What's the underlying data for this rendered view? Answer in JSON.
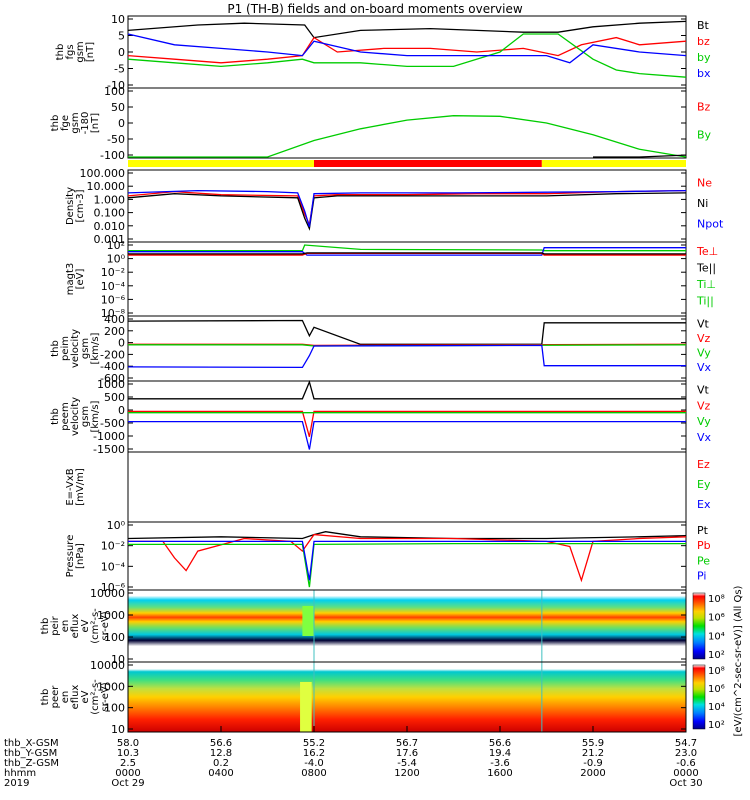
{
  "title": "P1 (TH-B) fields and on-board moments overview",
  "colors": {
    "black": "#000000",
    "red": "#ff0000",
    "green": "#00cc00",
    "blue": "#0000ff",
    "yellow": "#ffff00"
  },
  "chart_data": [
    {
      "type": "line",
      "ylabel": [
        "thb",
        "fgs",
        "gsm",
        "[nT]"
      ],
      "yticks": [
        "10",
        "5",
        "0",
        "-5",
        "-10"
      ],
      "ylim": [
        -10,
        10
      ],
      "legend": [
        {
          "name": "Bt",
          "color": "#000000"
        },
        {
          "name": "bz",
          "color": "#ff0000"
        },
        {
          "name": "by",
          "color": "#00cc00"
        },
        {
          "name": "bx",
          "color": "#0000ff"
        }
      ],
      "series": [
        {
          "name": "Bt",
          "color": "#000000",
          "x": [
            0,
            3,
            5,
            7.6,
            8,
            10,
            13,
            15,
            17,
            18.5,
            20,
            22,
            24
          ],
          "y": [
            6,
            7.5,
            8,
            7.5,
            4,
            6,
            6.5,
            6,
            5.5,
            5.5,
            7,
            8,
            8.5
          ]
        },
        {
          "name": "bz",
          "color": "#ff0000",
          "x": [
            0,
            2,
            4,
            6,
            7.5,
            8,
            9,
            11,
            13,
            15,
            17,
            18.5,
            19.5,
            21,
            22,
            24
          ],
          "y": [
            -1,
            -2,
            -3,
            -2,
            -1,
            4,
            0,
            1,
            1,
            0,
            1,
            -1,
            2,
            4,
            2,
            3
          ]
        },
        {
          "name": "by",
          "color": "#00cc00",
          "x": [
            0,
            2,
            4,
            6,
            7.5,
            8,
            10,
            12,
            14,
            16,
            17,
            18.5,
            20,
            21,
            22,
            24
          ],
          "y": [
            -2,
            -3,
            -4,
            -3,
            -2,
            -3,
            -3,
            -4,
            -4,
            0,
            5,
            5,
            -2,
            -5,
            -6,
            -7
          ]
        },
        {
          "name": "bx",
          "color": "#0000ff",
          "x": [
            0,
            2,
            4,
            6,
            7.5,
            8,
            10,
            12,
            14,
            16,
            18,
            19,
            20,
            22,
            24
          ],
          "y": [
            5,
            2,
            1,
            0,
            -1,
            3,
            0,
            -1,
            -1,
            -1,
            -1,
            -3,
            2,
            0,
            -1
          ]
        }
      ]
    },
    {
      "type": "line",
      "ylabel": [
        "thb",
        "fge",
        "gsm",
        "-180",
        "[nT]"
      ],
      "yticks": [
        "100",
        "50",
        "0",
        "-50",
        "-100"
      ],
      "ylim": [
        -140,
        100
      ],
      "legend": [
        {
          "name": "Bz",
          "color": "#ff0000"
        },
        {
          "name": "By",
          "color": "#00cc00"
        }
      ],
      "series": [
        {
          "name": "By",
          "color": "#00cc00",
          "x": [
            0,
            4,
            6,
            8,
            10,
            12,
            14,
            16,
            18,
            20,
            22,
            24
          ],
          "y": [
            -160,
            -160,
            -138,
            -80,
            -40,
            -10,
            5,
            3,
            -20,
            -60,
            -110,
            -140
          ]
        },
        {
          "name": "Bt",
          "color": "#000000",
          "x": [
            20,
            22,
            24
          ],
          "y": [
            -160,
            -140,
            -130
          ]
        }
      ]
    },
    {
      "type": "line",
      "ylabel": [
        "Density",
        "[cm-3]"
      ],
      "yticks": [
        "100.000",
        "10.000",
        "1.000",
        "0.100",
        "0.010",
        "0.001"
      ],
      "ylim": [
        0.0001,
        1000
      ],
      "log": true,
      "legend": [
        {
          "name": "Ne",
          "color": "#ff0000"
        },
        {
          "name": "Ni",
          "color": "#000000"
        },
        {
          "name": "Npot",
          "color": "#0000ff"
        }
      ],
      "series": [
        {
          "name": "Ne",
          "color": "#ff0000",
          "x": [
            0,
            2,
            4,
            7.3,
            7.6,
            7.8,
            8,
            9,
            12,
            15,
            18,
            21,
            24
          ],
          "y": [
            3,
            8,
            4,
            3,
            0.05,
            0.005,
            3,
            4,
            4,
            5,
            5,
            8,
            10
          ]
        },
        {
          "name": "Ni",
          "color": "#000000",
          "x": [
            0,
            2,
            4,
            7.3,
            7.6,
            7.8,
            8,
            9,
            12,
            15,
            18,
            21,
            24
          ],
          "y": [
            2,
            5,
            3,
            2,
            0.02,
            0.002,
            2,
            3,
            3,
            3,
            3,
            5,
            6
          ]
        },
        {
          "name": "Npot",
          "color": "#0000ff",
          "x": [
            0,
            3,
            6,
            7.3,
            7.6,
            7.8,
            8,
            10,
            14,
            18,
            21,
            24
          ],
          "y": [
            6,
            10,
            8,
            6,
            0.1,
            0.003,
            5,
            6,
            6,
            7,
            8,
            10
          ]
        }
      ]
    },
    {
      "type": "line",
      "ylabel": [
        "magt3",
        "[eV]"
      ],
      "yticks": [
        "10²",
        "10⁰",
        "10⁻²",
        "10⁻⁴",
        "10⁻⁶",
        "10⁻⁸"
      ],
      "ylim": [
        1e-10,
        1000
      ],
      "log": true,
      "legend": [
        {
          "name": "Te⊥",
          "color": "#ff0000"
        },
        {
          "name": "Te||",
          "color": "#000000"
        },
        {
          "name": "Ti⊥",
          "color": "#00cc00"
        },
        {
          "name": "Ti||",
          "color": "#00cc00"
        }
      ],
      "series": [
        {
          "name": "Ti",
          "color": "#00cc00",
          "x": [
            0,
            7.5,
            7.6,
            10,
            17.8,
            17.9,
            24
          ],
          "y": [
            30,
            30,
            300,
            50,
            40,
            30,
            30
          ]
        },
        {
          "name": "Tipara",
          "color": "#0000ff",
          "x": [
            0,
            7.5,
            7.7,
            17.8,
            17.9,
            24
          ],
          "y": [
            20,
            20,
            5,
            5,
            100,
            100
          ]
        },
        {
          "name": "Te",
          "color": "#ff0000",
          "x": [
            0,
            7.5,
            7.7,
            17.8,
            17.9,
            24
          ],
          "y": [
            5,
            5,
            10,
            10,
            5,
            5
          ]
        },
        {
          "name": "Tepara",
          "color": "#000000",
          "x": [
            0,
            7.5,
            7.7,
            17.8,
            17.9,
            24
          ],
          "y": [
            8,
            8,
            12,
            12,
            8,
            8
          ]
        }
      ]
    },
    {
      "type": "line",
      "ylabel": [
        "thb",
        "peim",
        "velocity",
        "gsm",
        "[km/s]"
      ],
      "yticks": [
        "400",
        "200",
        "0",
        "-200",
        "-400",
        "-600"
      ],
      "ylim": [
        -650,
        500
      ],
      "legend": [
        {
          "name": "Vt",
          "color": "#000000"
        },
        {
          "name": "Vz",
          "color": "#ff0000"
        },
        {
          "name": "Vy",
          "color": "#00cc00"
        },
        {
          "name": "Vx",
          "color": "#0000ff"
        }
      ],
      "series": [
        {
          "name": "Vt",
          "color": "#000000",
          "x": [
            0,
            7.5,
            7.8,
            8,
            10,
            17.8,
            17.9,
            24
          ],
          "y": [
            410,
            420,
            150,
            300,
            0,
            0,
            380,
            380
          ]
        },
        {
          "name": "Vz",
          "color": "#ff0000",
          "x": [
            0,
            7.5,
            8,
            24
          ],
          "y": [
            0,
            0,
            -20,
            0
          ]
        },
        {
          "name": "Vy",
          "color": "#00cc00",
          "x": [
            0,
            7.5,
            8,
            24
          ],
          "y": [
            -10,
            -10,
            -30,
            -10
          ]
        },
        {
          "name": "Vx",
          "color": "#0000ff",
          "x": [
            0,
            7.5,
            7.8,
            8,
            17.8,
            17.9,
            24
          ],
          "y": [
            -400,
            -410,
            -200,
            -30,
            -20,
            -380,
            -380
          ]
        }
      ]
    },
    {
      "type": "line",
      "ylabel": [
        "thb",
        "peem",
        "velocity",
        "gsm",
        "[km/s]"
      ],
      "yticks": [
        "1000",
        "500",
        "0",
        "-500",
        "-1000",
        "-1500"
      ],
      "ylim": [
        -1600,
        1200
      ],
      "legend": [
        {
          "name": "Vt",
          "color": "#000000"
        },
        {
          "name": "Vz",
          "color": "#ff0000"
        },
        {
          "name": "Vy",
          "color": "#00cc00"
        },
        {
          "name": "Vx",
          "color": "#0000ff"
        }
      ],
      "series": [
        {
          "name": "Vt",
          "color": "#000000",
          "x": [
            0,
            7.5,
            7.8,
            8,
            24
          ],
          "y": [
            500,
            500,
            1200,
            500,
            500
          ]
        },
        {
          "name": "Vz",
          "color": "#ff0000",
          "x": [
            0,
            7.5,
            7.8,
            8,
            24
          ],
          "y": [
            0,
            0,
            -1000,
            0,
            0
          ]
        },
        {
          "name": "Vy",
          "color": "#00cc00",
          "x": [
            0,
            24
          ],
          "y": [
            -50,
            -50
          ]
        },
        {
          "name": "Vx",
          "color": "#0000ff",
          "x": [
            0,
            7.5,
            7.8,
            8,
            24
          ],
          "y": [
            -400,
            -400,
            -1500,
            -400,
            -400
          ]
        }
      ]
    },
    {
      "type": "line",
      "ylabel": [
        "E=-VxB",
        "[mV/m]"
      ],
      "yticks": [],
      "ylim": [
        0,
        1
      ],
      "legend": [
        {
          "name": "Ez",
          "color": "#ff0000"
        },
        {
          "name": "Ey",
          "color": "#00cc00"
        },
        {
          "name": "Ex",
          "color": "#0000ff"
        }
      ],
      "series": []
    },
    {
      "type": "line",
      "ylabel": [
        "Pressure",
        "[nPa]"
      ],
      "yticks": [
        "10⁰",
        "10⁻²",
        "10⁻⁴",
        "10⁻⁶"
      ],
      "ylim": [
        1e-07,
        1
      ],
      "log": true,
      "legend": [
        {
          "name": "Pt",
          "color": "#000000"
        },
        {
          "name": "Pb",
          "color": "#ff0000"
        },
        {
          "name": "Pe",
          "color": "#00cc00"
        },
        {
          "name": "Pi",
          "color": "#0000ff"
        }
      ],
      "series": [
        {
          "name": "Pt",
          "color": "#000000",
          "x": [
            0,
            4,
            7.5,
            8,
            8.5,
            10,
            14,
            18,
            22,
            24
          ],
          "y": [
            0.02,
            0.03,
            0.02,
            0.05,
            0.1,
            0.03,
            0.02,
            0.02,
            0.03,
            0.04
          ]
        },
        {
          "name": "Pb",
          "color": "#ff0000",
          "x": [
            0,
            1.5,
            2,
            2.5,
            3,
            5,
            7,
            7.5,
            8,
            10,
            14,
            18,
            19,
            19.5,
            20,
            22,
            24
          ],
          "y": [
            0.01,
            0.01,
            0.0002,
            1e-05,
            0.001,
            0.02,
            0.01,
            0.001,
            0.05,
            0.02,
            0.02,
            0.01,
            0.003,
            1e-06,
            0.01,
            0.02,
            0.03
          ]
        },
        {
          "name": "Pe",
          "color": "#00cc00",
          "x": [
            0,
            7.5,
            7.8,
            8,
            14,
            24
          ],
          "y": [
            0.005,
            0.005,
            2e-07,
            0.005,
            0.006,
            0.006
          ]
        },
        {
          "name": "Pi",
          "color": "#0000ff",
          "x": [
            0,
            7.5,
            7.8,
            8,
            14,
            24
          ],
          "y": [
            0.01,
            0.01,
            1e-06,
            0.01,
            0.01,
            0.01
          ]
        }
      ]
    },
    {
      "type": "heatmap",
      "ylabel": [
        "thb",
        "peir",
        "en",
        "eflux",
        "eV",
        "(cm²-s-",
        "sr-eV)"
      ],
      "yticks": [
        "10000",
        "1000",
        "100",
        "10"
      ],
      "ylim": [
        5,
        30000
      ],
      "log": true,
      "colorbar": {
        "label": "[eV/(cm^2-sec-sr-eV)] (All Qs)",
        "ticks": [
          "10⁸",
          "10⁶",
          "10⁴",
          "10²"
        ]
      }
    },
    {
      "type": "heatmap",
      "ylabel": [
        "thb",
        "peer",
        "en",
        "eflux",
        "eV",
        "(cm²-s-",
        "sr-eV)"
      ],
      "yticks": [
        "10000",
        "1000",
        "100",
        "10"
      ],
      "ylim": [
        5,
        30000
      ],
      "log": true,
      "colorbar": {
        "label": "[eV/(cm^2-sec-sr-eV)] (All Qs)",
        "ticks": [
          "10⁸",
          "10⁶",
          "10⁴",
          "10²"
        ]
      }
    }
  ],
  "quality_bar": [
    {
      "from": 0,
      "to": 8,
      "color": "#ffff00"
    },
    {
      "from": 8,
      "to": 17.8,
      "color": "#ff0000"
    },
    {
      "from": 17.8,
      "to": 24,
      "color": "#ffff00"
    }
  ],
  "xaxis": {
    "row_labels": [
      "thb_X-GSM",
      "thb_Y-GSM",
      "thb_Z-GSM",
      "hhmm",
      "2019"
    ],
    "ticks": [
      {
        "h": 0,
        "vals": [
          "58.0",
          "10.3",
          "2.5",
          "0000",
          "Oct 29"
        ]
      },
      {
        "h": 4,
        "vals": [
          "56.6",
          "12.8",
          "0.2",
          "0400",
          ""
        ]
      },
      {
        "h": 8,
        "vals": [
          "55.2",
          "16.2",
          "-4.0",
          "0800",
          ""
        ]
      },
      {
        "h": 12,
        "vals": [
          "56.7",
          "17.6",
          "-5.4",
          "1200",
          ""
        ]
      },
      {
        "h": 16,
        "vals": [
          "56.6",
          "19.4",
          "-3.6",
          "1600",
          ""
        ]
      },
      {
        "h": 20,
        "vals": [
          "55.9",
          "21.2",
          "-0.9",
          "2000",
          ""
        ]
      },
      {
        "h": 24,
        "vals": [
          "54.7",
          "23.0",
          "-0.6",
          "0000",
          "Oct 30"
        ]
      }
    ]
  }
}
